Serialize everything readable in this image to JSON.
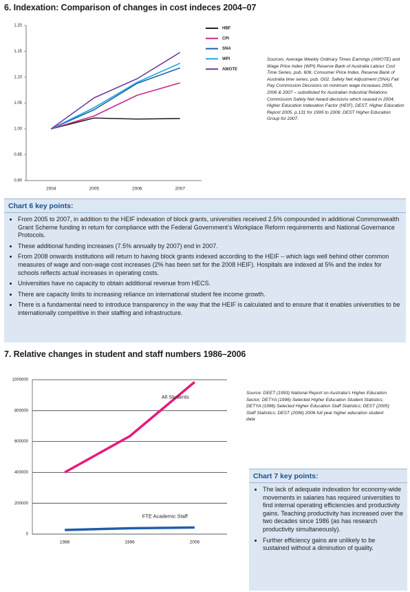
{
  "chart_data": [
    {
      "type": "line",
      "title": "6. Indexation: Comparison of changes in cost indeces 2004–07",
      "note": "Sources: Average Weekly Ordinary Times Earnings (AWOTE) and Wage Price Index (WPI) Reserve Bank of Australia Labour Cost Time Series, pub. 606; Consumer Price Index, Reserve Bank of Australia time series,  pub. G02. Safety Net Adjustment (SNA)  Fair Pay Commission Decisions on minimum wage increases 2005, 2006 & 2007 – substituted for Australian Industrial Relations Commission Safety Net Award decisions which ceased in 2004; Higher Education Indexation Factor (HEIF), DEST, Higher Education Report 2005, p.131 for 1995 to 2006; DEST Higher Education Group for 2007.",
      "categories": [
        "2004",
        "2005",
        "2006",
        "2007"
      ],
      "series": [
        {
          "name": "HBF",
          "color": "#231f20",
          "values": [
            1.0,
            1.021,
            1.019,
            1.02
          ]
        },
        {
          "name": "CPI",
          "color": "#c8288c",
          "values": [
            1.0,
            1.025,
            1.065,
            1.089
          ]
        },
        {
          "name": "SNA",
          "color": "#1f5fa8",
          "values": [
            1.0,
            1.037,
            1.088,
            1.118
          ]
        },
        {
          "name": "WPI",
          "color": "#19a9e1",
          "values": [
            1.0,
            1.041,
            1.09,
            1.127
          ]
        },
        {
          "name": "AWOTE",
          "color": "#6a3a9a",
          "values": [
            1.0,
            1.06,
            1.097,
            1.148
          ]
        }
      ],
      "ylim": [
        0.9,
        1.2
      ],
      "yticks": [
        {
          "value": 0.9,
          "label": "0.90"
        },
        0.95,
        {
          "value": 1.0,
          "label": "1.00"
        },
        1.05,
        {
          "value": 1.1,
          "label": "1.10"
        },
        1.15,
        {
          "value": 1.2,
          "label": "1.20"
        }
      ],
      "grid": false,
      "legend": "upper right"
    },
    {
      "type": "line",
      "title": "7.  Relative changes in student and staff numbers 1986–2006",
      "note": "Source: DEET (1993) National Report on Australia’s Higher Education Sector; DETYA (1996) Selected Higher Education Student Statistics; DETYA (1996) Selected Higher Education Staff Statistics; DEST (2005) Staff Statistics; DEST (2006) 2006 full year higher education student data",
      "categories": [
        "1986",
        "1996",
        "2006"
      ],
      "series": [
        {
          "name": "All Students",
          "color": "#e6197e",
          "values": [
            400000,
            634000,
            985000
          ]
        },
        {
          "name": "FTE Academic Staff",
          "color": "#1f5fa8",
          "values": [
            27000,
            38000,
            43000
          ]
        }
      ],
      "ylim": [
        0,
        1000000
      ],
      "yticks": [
        0,
        200000,
        400000,
        600000,
        800000,
        1000000
      ],
      "grid": true
    }
  ],
  "boxes": [
    {
      "title": "Chart 6 key points:",
      "items": [
        "From 2005 to 2007, in addition to the HEIF indexation of block grants, universities received 2.5% compounded in additional Commonwealth Grant Scheme funding in return for compliance with the Federal Government’s Workplace Reform requirements and National Governance Protocols.",
        "These additional funding increases (7.5% annually by 2007) end in 2007.",
        "From 2008 onwards institutions will return to having block grants indexed according to the HEIF – which lags well behind other common measures of wage and non-wage cost increases (2% has been set for the 2008 HEIF). Hospitals are indexed at 5% and the index for schools reflects actual increases in operating costs.",
        "Universities have no capacity to obtain additional revenue from HECS.",
        "There are capacity limits to increasing reliance on international student fee income growth.",
        "There is a fundamental need to introduce transparency in the way that the HEIF is calculated and to ensure that it enables universities to be internationally competitive in their staffing and infrastructure."
      ]
    },
    {
      "title": "Chart 7 key points:",
      "items": [
        "The lack of adequate indexation for economy-wide movements in salaries has required universities to find internal operating efficiencies and productivity gains.  Teaching productivity has increased over the two decades since 1986 (as has research productivity simultaneously).",
        "Further efficiency gains are unlikely to be sustained without a diminution of quality."
      ]
    }
  ]
}
